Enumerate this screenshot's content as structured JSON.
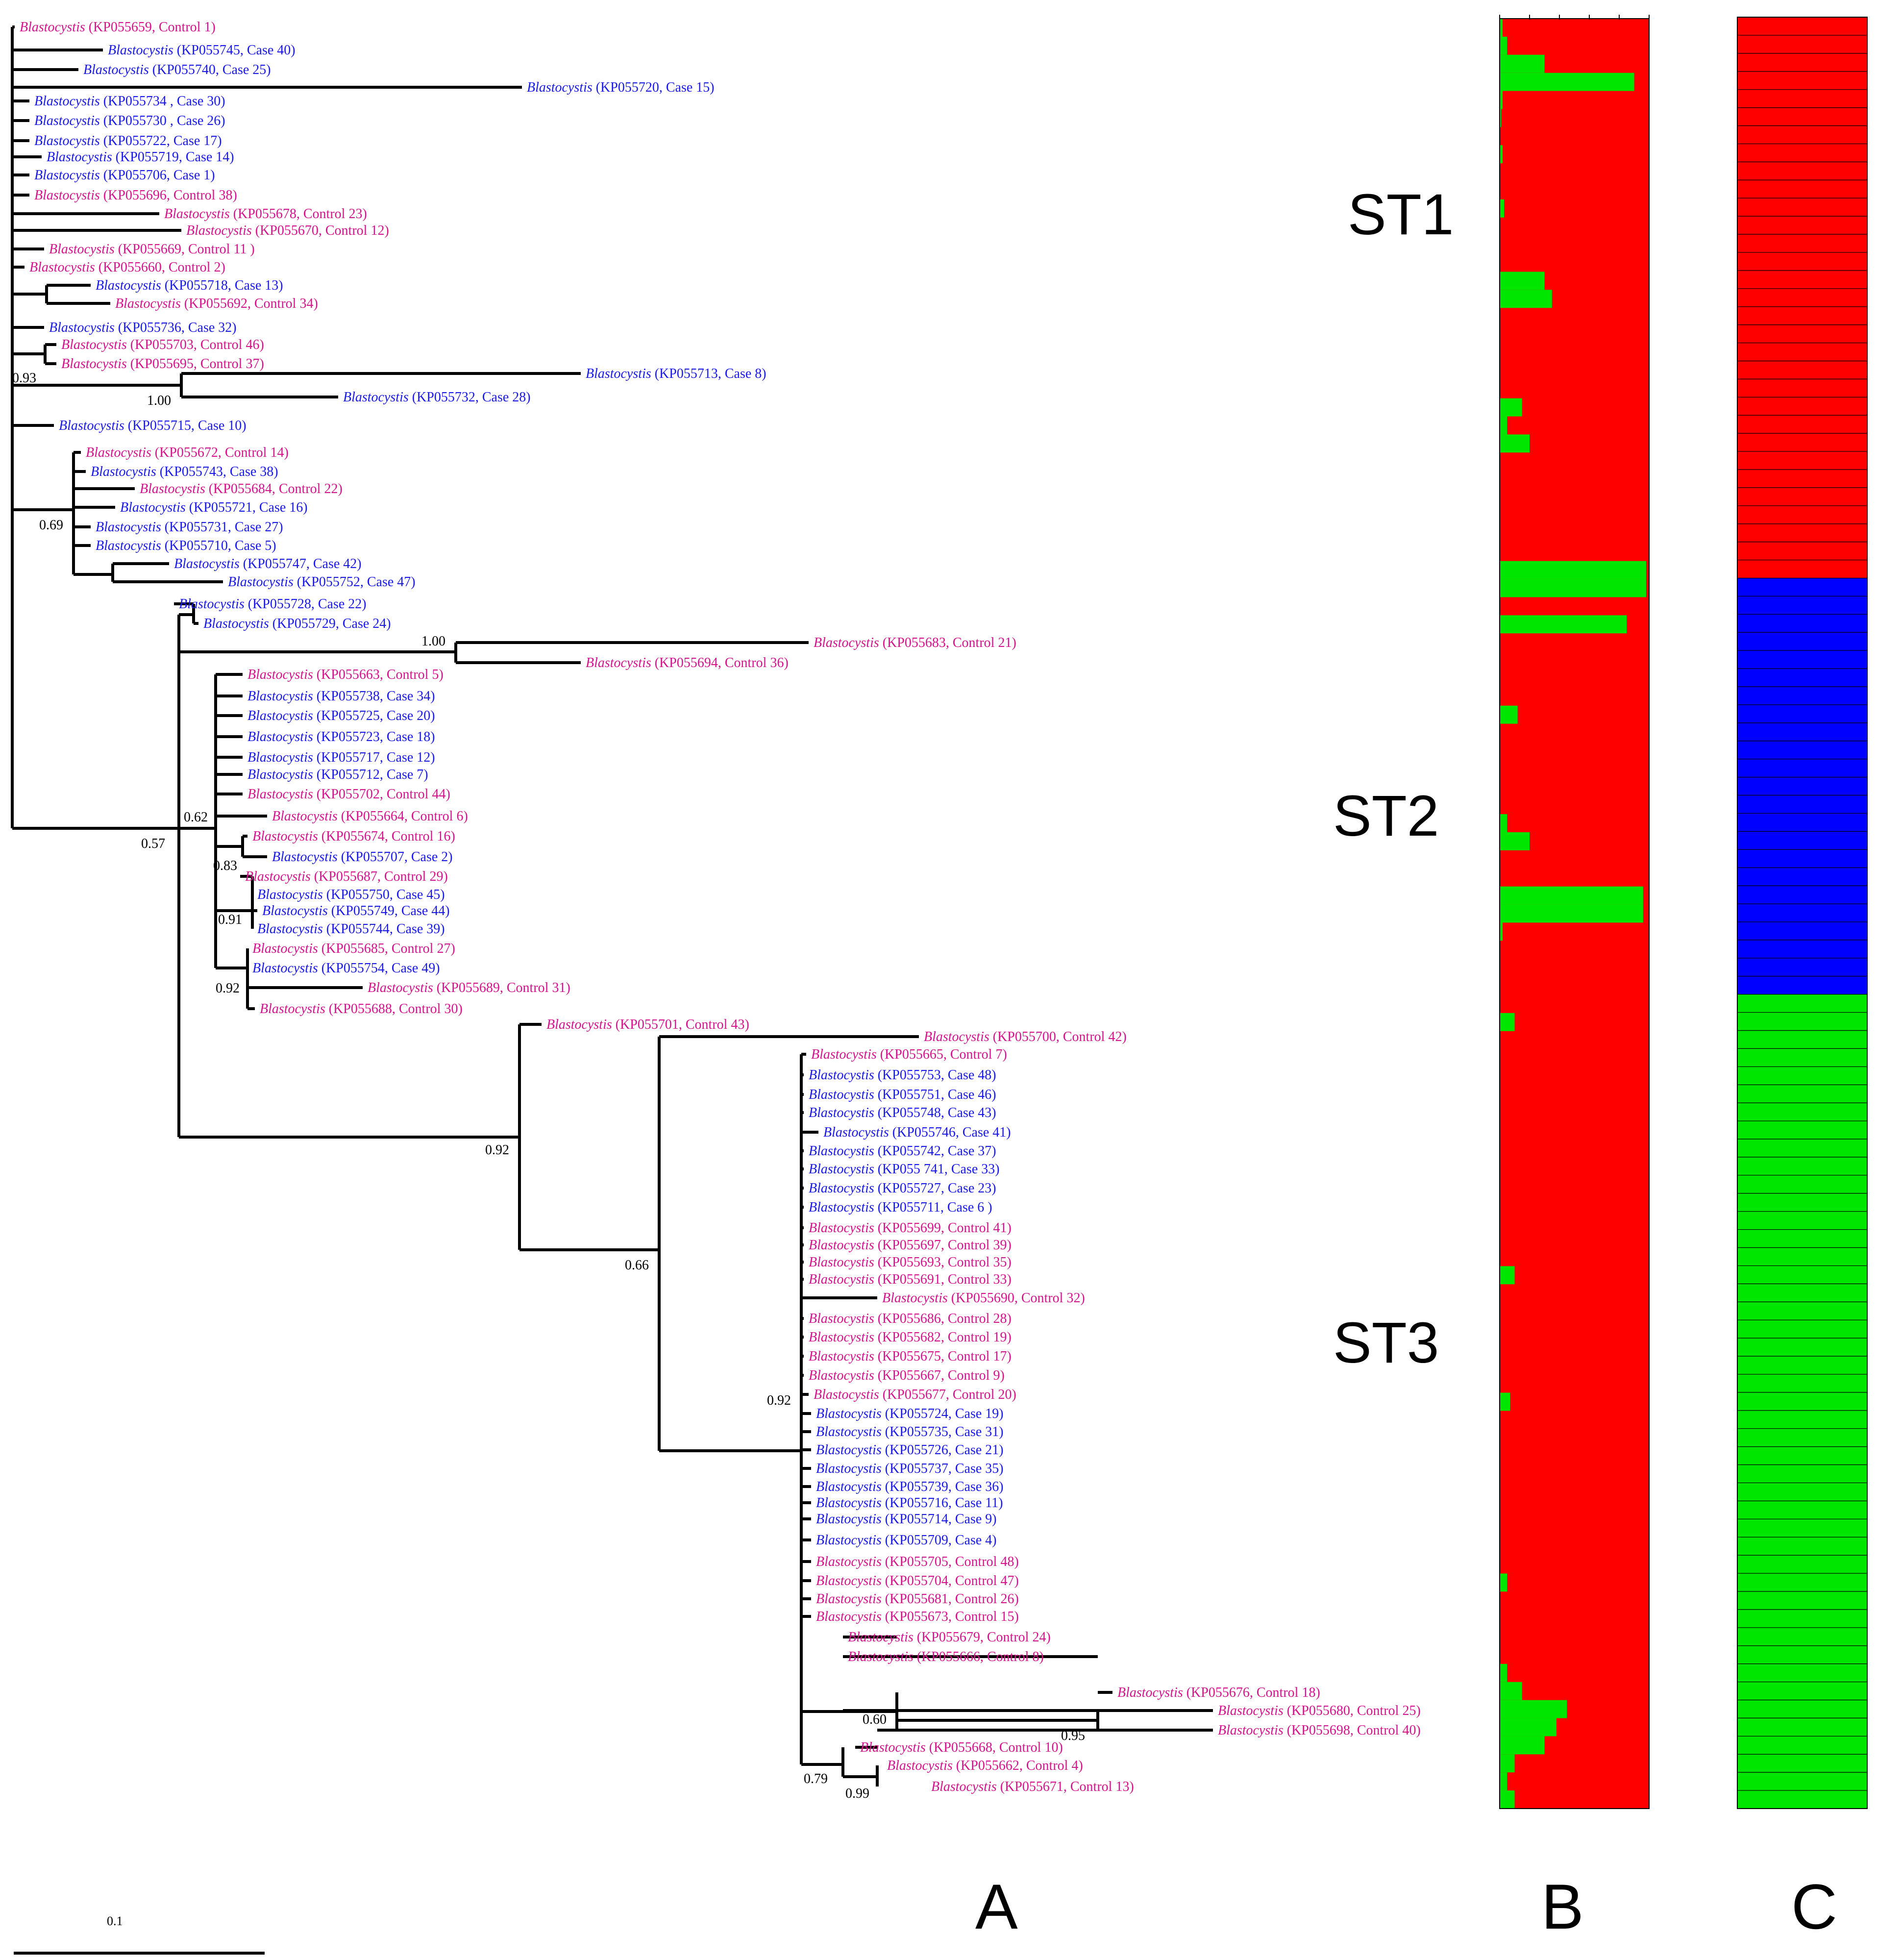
{
  "figure": {
    "panel_labels": [
      "A",
      "B",
      "C"
    ],
    "subtype_labels": [
      "ST1",
      "ST2",
      "ST3"
    ],
    "scale_bar": "0.1",
    "genus": "Blastocystis"
  },
  "colors": {
    "case": "#1a1ae6",
    "control": "#d4148c",
    "cluster_red": "#ff0000",
    "cluster_green": "#00e600",
    "cluster_blue": "#0000ff"
  },
  "leaves": [
    {
      "acc": "KP055659",
      "label": "Control 1",
      "group": "control",
      "text": "(KP055659, Control 1)"
    },
    {
      "acc": "KP055745",
      "label": "Case 40",
      "group": "case",
      "text": "(KP055745, Case 40)"
    },
    {
      "acc": "KP055740",
      "label": "Case 25",
      "group": "case",
      "text": "(KP055740, Case 25)"
    },
    {
      "acc": "KP055720",
      "label": "Case 15",
      "group": "case",
      "text": "(KP055720, Case 15)"
    },
    {
      "acc": "KP055734",
      "label": "Case 30",
      "group": "case",
      "text": "(KP055734 , Case 30)"
    },
    {
      "acc": "KP055730",
      "label": "Case 26",
      "group": "case",
      "text": "(KP055730 , Case 26)"
    },
    {
      "acc": "KP055722",
      "label": "Case 17",
      "group": "case",
      "text": "(KP055722, Case 17)"
    },
    {
      "acc": "KP055719",
      "label": "Case 14",
      "group": "case",
      "text": "(KP055719, Case 14)"
    },
    {
      "acc": "KP055706",
      "label": "Case 1",
      "group": "case",
      "text": "(KP055706, Case 1)"
    },
    {
      "acc": "KP055696",
      "label": "Control 38",
      "group": "control",
      "text": "(KP055696, Control 38)"
    },
    {
      "acc": "KP055678",
      "label": "Control 23",
      "group": "control",
      "text": "(KP055678, Control 23)"
    },
    {
      "acc": "KP055670",
      "label": "Control 12",
      "group": "control",
      "text": "(KP055670, Control 12)"
    },
    {
      "acc": "KP055669",
      "label": "Control 11",
      "group": "control",
      "text": "(KP055669, Control 11 )"
    },
    {
      "acc": "KP055660",
      "label": "Control 2",
      "group": "control",
      "text": "(KP055660, Control  2)"
    },
    {
      "acc": "KP055718",
      "label": "Case 13",
      "group": "case",
      "text": "(KP055718, Case 13)"
    },
    {
      "acc": "KP055692",
      "label": "Control 34",
      "group": "control",
      "text": "(KP055692, Control 34)"
    },
    {
      "acc": "KP055736",
      "label": "Case 32",
      "group": "case",
      "text": "(KP055736, Case 32)"
    },
    {
      "acc": "KP055703",
      "label": "Control 46",
      "group": "control",
      "text": "(KP055703, Control 46)"
    },
    {
      "acc": "KP055695",
      "label": "Control 37",
      "group": "control",
      "text": "(KP055695, Control 37)"
    },
    {
      "acc": "KP055713",
      "label": "Case 8",
      "group": "case",
      "text": "(KP055713, Case 8)"
    },
    {
      "acc": "KP055732",
      "label": "Case 28",
      "group": "case",
      "text": "(KP055732, Case 28)"
    },
    {
      "acc": "KP055715",
      "label": "Case 10",
      "group": "case",
      "text": "(KP055715, Case 10)"
    },
    {
      "acc": "KP055672",
      "label": "Control 14",
      "group": "control",
      "text": "(KP055672, Control 14)"
    },
    {
      "acc": "KP055743",
      "label": "Case 38",
      "group": "case",
      "text": "(KP055743, Case 38)"
    },
    {
      "acc": "KP055684",
      "label": "Control 22",
      "group": "control",
      "text": "(KP055684, Control 22)"
    },
    {
      "acc": "KP055721",
      "label": "Case 16",
      "group": "case",
      "text": "(KP055721, Case 16)"
    },
    {
      "acc": "KP055731",
      "label": "Case 27",
      "group": "case",
      "text": "(KP055731, Case 27)"
    },
    {
      "acc": "KP055710",
      "label": "Case 5",
      "group": "case",
      "text": "(KP055710, Case 5)"
    },
    {
      "acc": "KP055747",
      "label": "Case 42",
      "group": "case",
      "text": "(KP055747, Case 42)"
    },
    {
      "acc": "KP055752",
      "label": "Case 47",
      "group": "case",
      "text": "(KP055752, Case 47)"
    },
    {
      "acc": "KP055728",
      "label": "Case 22",
      "group": "case",
      "text": "(KP055728, Case 22)"
    },
    {
      "acc": "KP055729",
      "label": "Case 24",
      "group": "case",
      "text": "(KP055729, Case 24)"
    },
    {
      "acc": "KP055683",
      "label": "Control 21",
      "group": "control",
      "text": "(KP055683, Control 21)"
    },
    {
      "acc": "KP055694",
      "label": "Control 36",
      "group": "control",
      "text": "(KP055694, Control 36)"
    },
    {
      "acc": "KP055663",
      "label": "Control 5",
      "group": "control",
      "text": "(KP055663, Control 5)"
    },
    {
      "acc": "KP055738",
      "label": "Case 34",
      "group": "case",
      "text": "(KP055738, Case 34)"
    },
    {
      "acc": "KP055725",
      "label": "Case 20",
      "group": "case",
      "text": "(KP055725, Case 20)"
    },
    {
      "acc": "KP055723",
      "label": "Case 18",
      "group": "case",
      "text": "(KP055723, Case 18)"
    },
    {
      "acc": "KP055717",
      "label": "Case 12",
      "group": "case",
      "text": "(KP055717, Case 12)"
    },
    {
      "acc": "KP055712",
      "label": "Case 7",
      "group": "case",
      "text": "(KP055712, Case 7)"
    },
    {
      "acc": "KP055702",
      "label": "Control 44",
      "group": "control",
      "text": "(KP055702, Control 44)"
    },
    {
      "acc": "KP055664",
      "label": "Control 6",
      "group": "control",
      "text": "(KP055664, Control 6)"
    },
    {
      "acc": "KP055674",
      "label": "Control 16",
      "group": "control",
      "text": "(KP055674, Control 16)"
    },
    {
      "acc": "KP055707",
      "label": "Case 2",
      "group": "case",
      "text": "(KP055707, Case 2)"
    },
    {
      "acc": "KP055687",
      "label": "Control 29",
      "group": "control",
      "text": "(KP055687, Control 29)"
    },
    {
      "acc": "KP055750",
      "label": "Case 45",
      "group": "case",
      "text": "(KP055750, Case 45)"
    },
    {
      "acc": "KP055749",
      "label": "Case 44",
      "group": "case",
      "text": "(KP055749, Case 44)"
    },
    {
      "acc": "KP055744",
      "label": "Case 39",
      "group": "case",
      "text": "(KP055744, Case 39)"
    },
    {
      "acc": "KP055685",
      "label": "Control 27",
      "group": "control",
      "text": "(KP055685, Control 27)"
    },
    {
      "acc": "KP055754",
      "label": "Case 49",
      "group": "case",
      "text": "(KP055754, Case 49)"
    },
    {
      "acc": "KP055689",
      "label": "Control 31",
      "group": "control",
      "text": "(KP055689, Control 31)"
    },
    {
      "acc": "KP055688",
      "label": "Control 30",
      "group": "control",
      "text": "(KP055688, Control 30)"
    },
    {
      "acc": "KP055701",
      "label": "Control 43",
      "group": "control",
      "text": "(KP055701, Control 43)"
    },
    {
      "acc": "KP055700",
      "label": "Control 42",
      "group": "control",
      "text": "(KP055700, Control 42)"
    },
    {
      "acc": "KP055665",
      "label": "Control 7",
      "group": "control",
      "text": "(KP055665, Control 7)"
    },
    {
      "acc": "KP055753",
      "label": "Case 48",
      "group": "case",
      "text": "(KP055753, Case 48)"
    },
    {
      "acc": "KP055751",
      "label": "Case 46",
      "group": "case",
      "text": "(KP055751, Case 46)"
    },
    {
      "acc": "KP055748",
      "label": "Case 43",
      "group": "case",
      "text": "(KP055748, Case 43)"
    },
    {
      "acc": "KP055746",
      "label": "Case 41",
      "group": "case",
      "text": "(KP055746, Case 41)"
    },
    {
      "acc": "KP055742",
      "label": "Case 37",
      "group": "case",
      "text": "(KP055742, Case 37)"
    },
    {
      "acc": "KP055741",
      "label": "Case 33",
      "group": "case",
      "text": "(KP055 741, Case 33)"
    },
    {
      "acc": "KP055727",
      "label": "Case 23",
      "group": "case",
      "text": "(KP055727, Case 23)"
    },
    {
      "acc": "KP055711",
      "label": "Case 6",
      "group": "case",
      "text": "(KP055711, Case 6 )"
    },
    {
      "acc": "KP055699",
      "label": "Control 41",
      "group": "control",
      "text": "(KP055699, Control 41)"
    },
    {
      "acc": "KP055697",
      "label": "Control 39",
      "group": "control",
      "text": "(KP055697, Control  39)"
    },
    {
      "acc": "KP055693",
      "label": "Control 35",
      "group": "control",
      "text": "(KP055693, Control 35)"
    },
    {
      "acc": "KP055691",
      "label": "Control 33",
      "group": "control",
      "text": "(KP055691, Control 33)"
    },
    {
      "acc": "KP055690",
      "label": "Control 32",
      "group": "control",
      "text": "(KP055690, Control 32)"
    },
    {
      "acc": "KP055686",
      "label": "Control 28",
      "group": "control",
      "text": "(KP055686, Control 28)"
    },
    {
      "acc": "KP055682",
      "label": "Control 19",
      "group": "control",
      "text": "(KP055682, Control 19)"
    },
    {
      "acc": "KP055675",
      "label": "Control 17",
      "group": "control",
      "text": "(KP055675, Control 17)"
    },
    {
      "acc": "KP055667",
      "label": "Control 9",
      "group": "control",
      "text": "(KP055667, Control 9)"
    },
    {
      "acc": "KP055677",
      "label": "Control 20",
      "group": "control",
      "text": "(KP055677, Control 20)"
    },
    {
      "acc": "KP055724",
      "label": "Case 19",
      "group": "case",
      "text": "(KP055724, Case 19)"
    },
    {
      "acc": "KP055735",
      "label": "Case 31",
      "group": "case",
      "text": "(KP055735, Case 31)"
    },
    {
      "acc": "KP055726",
      "label": "Case 21",
      "group": "case",
      "text": "(KP055726, Case 21)"
    },
    {
      "acc": "KP055737",
      "label": "Case 35",
      "group": "case",
      "text": "(KP055737, Case 35)"
    },
    {
      "acc": "KP055739",
      "label": "Case 36",
      "group": "case",
      "text": "(KP055739, Case 36)"
    },
    {
      "acc": "KP055716",
      "label": "Case 11",
      "group": "case",
      "text": "(KP055716, Case 11)"
    },
    {
      "acc": "KP055714",
      "label": "Case 9",
      "group": "case",
      "text": "(KP055714, Case 9)"
    },
    {
      "acc": "KP055709",
      "label": "Case 4",
      "group": "case",
      "text": "(KP055709, Case 4)"
    },
    {
      "acc": "KP055705",
      "label": "Control 48",
      "group": "control",
      "text": "(KP055705, Control 48)"
    },
    {
      "acc": "KP055704",
      "label": "Control 47",
      "group": "control",
      "text": "(KP055704, Control 47)"
    },
    {
      "acc": "KP055681",
      "label": "Control 26",
      "group": "control",
      "text": "(KP055681, Control 26)"
    },
    {
      "acc": "KP055673",
      "label": "Control 15",
      "group": "control",
      "text": "(KP055673, Control 15)"
    },
    {
      "acc": "KP055679",
      "label": "Control 24",
      "group": "control",
      "text": "(KP055679, Control 24)"
    },
    {
      "acc": "KP055666",
      "label": "Control 8",
      "group": "control",
      "text": "(KP055666, Control 8)"
    },
    {
      "acc": "KP055676",
      "label": "Control 18",
      "group": "control",
      "text": "(KP055676, Control 18)"
    },
    {
      "acc": "KP055680",
      "label": "Control 25",
      "group": "control",
      "text": "(KP055680, Control 25)"
    },
    {
      "acc": "KP055698",
      "label": "Control 40",
      "group": "control",
      "text": "(KP055698, Control 40)"
    },
    {
      "acc": "KP055668",
      "label": "Control 10",
      "group": "control",
      "text": "(KP055668, Control 10)"
    },
    {
      "acc": "KP055662",
      "label": "Control 4",
      "group": "control",
      "text": "(KP055662, Control 4)"
    },
    {
      "acc": "KP055671",
      "label": "Control 13",
      "group": "control",
      "text": "(KP055671, Control 13)"
    }
  ],
  "support_values": [
    "0.93",
    "1.00",
    "0.69",
    "0.57",
    "1.00",
    "0.62",
    "0.83",
    "0.91",
    "0.92",
    "0.92",
    "0.66",
    "0.92",
    "0.60",
    "0.95",
    "0.79",
    "0.99"
  ],
  "panel_b": {
    "note": "membership fraction of the green cluster per sample, remainder red",
    "green_fractions": [
      0.02,
      0.05,
      0.3,
      0.9,
      0.02,
      0.01,
      0.0,
      0.02,
      0.0,
      0.0,
      0.03,
      0.0,
      0.0,
      0.0,
      0.3,
      0.35,
      0.0,
      0.0,
      0.0,
      0.0,
      0.0,
      0.15,
      0.05,
      0.2,
      0.0,
      0.0,
      0.0,
      0.0,
      0.0,
      0.0,
      0.98,
      0.98,
      0.0,
      0.85,
      0.0,
      0.0,
      0.0,
      0.0,
      0.12,
      0.0,
      0.0,
      0.0,
      0.0,
      0.0,
      0.05,
      0.2,
      0.0,
      0.0,
      0.96,
      0.96,
      0.02,
      0.0,
      0.0,
      0.0,
      0.0,
      0.1,
      0.0,
      0.0,
      0.0,
      0.0,
      0.0,
      0.0,
      0.0,
      0.0,
      0.0,
      0.0,
      0.0,
      0.0,
      0.0,
      0.1,
      0.0,
      0.0,
      0.0,
      0.0,
      0.0,
      0.0,
      0.07,
      0.0,
      0.0,
      0.0,
      0.0,
      0.0,
      0.0,
      0.0,
      0.0,
      0.0,
      0.05,
      0.0,
      0.0,
      0.0,
      0.0,
      0.05,
      0.15,
      0.45,
      0.38,
      0.3,
      0.1,
      0.05,
      0.1
    ]
  },
  "panel_c": {
    "note": "cluster assignment bands from top to bottom",
    "bands": [
      {
        "cluster": "red",
        "samples": 31
      },
      {
        "cluster": "blue",
        "samples": 23
      },
      {
        "cluster": "green",
        "samples": 45
      }
    ]
  }
}
